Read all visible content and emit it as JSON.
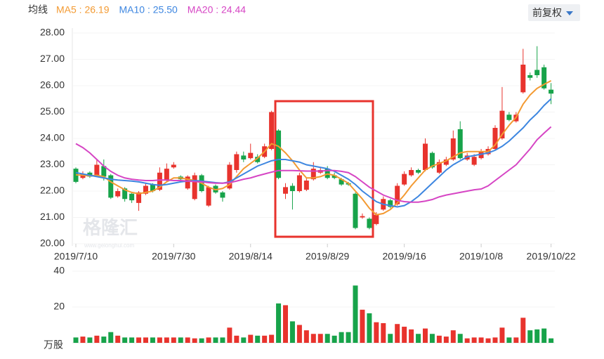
{
  "chart_data": {
    "type": "candlestick",
    "indicator_label": "均线",
    "adjust_button": "前复权",
    "watermark": "格隆汇",
    "watermark_url": "www.gelonghui.com",
    "volume_unit": "万股",
    "up_color": "#e8332d",
    "down_color": "#17a34a",
    "categories": [
      "2019/7/10",
      null,
      null,
      null,
      null,
      null,
      null,
      null,
      null,
      null,
      null,
      null,
      null,
      null,
      "2019/7/30",
      null,
      null,
      null,
      null,
      null,
      null,
      null,
      null,
      null,
      null,
      "2019/8/14",
      null,
      null,
      null,
      null,
      null,
      null,
      null,
      null,
      null,
      null,
      "2019/8/29",
      null,
      null,
      null,
      null,
      null,
      null,
      null,
      null,
      null,
      null,
      "2019/9/16",
      null,
      null,
      null,
      null,
      null,
      null,
      null,
      null,
      null,
      null,
      "2019/10/8",
      null,
      null,
      null,
      null,
      null,
      null,
      null,
      null,
      null,
      "2019/10/22"
    ],
    "open": [
      22.85,
      22.5,
      22.7,
      22.6,
      22.95,
      22.6,
      21.8,
      22.1,
      21.9,
      21.55,
      21.9,
      22.25,
      22.05,
      22.4,
      22.9,
      22.55,
      22.1,
      21.7,
      22.6,
      21.45,
      22.2,
      21.95,
      22.1,
      22.8,
      23.35,
      23.25,
      23.3,
      23.3,
      23.6,
      24.3,
      21.9,
      22.2,
      22.0,
      22.05,
      22.45,
      22.7,
      22.85,
      22.6,
      22.45,
      22.3,
      21.9,
      21.0,
      20.95,
      20.75,
      21.3,
      21.65,
      21.5,
      22.25,
      22.6,
      22.8,
      22.8,
      23.45,
      22.7,
      23.0,
      23.2,
      24.35,
      23.2,
      23.0,
      23.25,
      23.4,
      23.6,
      24.0,
      24.9,
      24.65,
      25.75,
      26.4,
      26.6,
      26.7,
      25.85
    ],
    "high": [
      22.9,
      22.75,
      22.75,
      23.2,
      23.2,
      22.65,
      22.1,
      22.15,
      21.95,
      22.0,
      22.3,
      22.3,
      22.9,
      23.05,
      23.1,
      22.6,
      22.6,
      22.7,
      22.65,
      22.2,
      22.25,
      22.0,
      23.1,
      23.5,
      23.5,
      23.8,
      23.4,
      23.8,
      25.05,
      24.35,
      22.3,
      22.3,
      22.7,
      22.5,
      23.1,
      22.9,
      22.95,
      22.7,
      22.5,
      22.35,
      21.95,
      21.15,
      21.0,
      21.2,
      21.8,
      21.7,
      22.3,
      22.75,
      22.9,
      22.85,
      24.0,
      23.5,
      23.2,
      23.3,
      24.3,
      24.65,
      23.45,
      23.4,
      23.6,
      23.7,
      24.5,
      25.95,
      25.0,
      25.0,
      27.4,
      26.5,
      27.5,
      26.8,
      26.1
    ],
    "low": [
      22.3,
      22.45,
      22.5,
      22.55,
      22.4,
      21.7,
      21.75,
      21.6,
      21.55,
      21.25,
      21.85,
      21.95,
      22.0,
      22.35,
      22.85,
      22.4,
      22.05,
      21.65,
      21.95,
      21.4,
      21.9,
      21.6,
      22.05,
      22.7,
      23.1,
      23.2,
      23.05,
      23.25,
      23.55,
      22.45,
      21.7,
      21.3,
      21.95,
      22.0,
      22.4,
      22.65,
      22.45,
      22.45,
      22.2,
      22.2,
      20.55,
      20.95,
      20.55,
      20.7,
      21.25,
      21.35,
      21.45,
      22.2,
      22.55,
      22.65,
      22.75,
      22.85,
      22.65,
      22.95,
      23.15,
      23.2,
      23.15,
      22.95,
      23.2,
      23.35,
      23.55,
      23.95,
      24.65,
      24.6,
      25.7,
      26.2,
      26.3,
      25.85,
      25.3
    ],
    "close": [
      22.35,
      22.65,
      22.55,
      23.0,
      22.55,
      21.75,
      22.0,
      21.7,
      21.65,
      21.95,
      22.2,
      22.0,
      22.7,
      22.85,
      23.0,
      22.45,
      22.55,
      22.6,
      22.0,
      22.15,
      21.95,
      21.75,
      23.0,
      23.4,
      23.2,
      23.45,
      23.1,
      23.7,
      25.0,
      22.5,
      22.15,
      22.0,
      22.6,
      22.4,
      22.85,
      22.8,
      22.5,
      22.5,
      22.25,
      22.25,
      20.6,
      21.05,
      20.6,
      21.1,
      21.7,
      21.4,
      22.2,
      22.65,
      22.8,
      22.7,
      23.8,
      22.9,
      23.1,
      23.2,
      24.0,
      23.25,
      23.35,
      23.3,
      23.5,
      23.6,
      24.4,
      25.05,
      24.7,
      24.9,
      26.8,
      26.3,
      26.4,
      25.9,
      25.7
    ],
    "volume": [
      3,
      3.5,
      3,
      4,
      3.5,
      6,
      4,
      3,
      3,
      3,
      3,
      3,
      3,
      3,
      3,
      3,
      3,
      2.5,
      2.5,
      3,
      3,
      3,
      8.5,
      4,
      3,
      4.5,
      4,
      4,
      4.5,
      22,
      21,
      12,
      10,
      7,
      5,
      5,
      5,
      4,
      6,
      6,
      32,
      18.5,
      16.5,
      11.5,
      11,
      5,
      10.5,
      9,
      7.5,
      5,
      8,
      5,
      4,
      3.5,
      7,
      5,
      2.5,
      3,
      3,
      2.5,
      3,
      8.5,
      3,
      3,
      14,
      7,
      7.5,
      8,
      2.5
    ],
    "ma": [
      {
        "name": "MA5 : 26.19",
        "color": "#f39a32",
        "values": [
          22.62,
          22.6,
          22.58,
          22.6,
          22.55,
          22.35,
          22.2,
          22.05,
          21.95,
          21.9,
          21.95,
          22.0,
          22.15,
          22.35,
          22.5,
          22.5,
          22.45,
          22.4,
          22.3,
          22.15,
          22.05,
          22.1,
          22.25,
          22.55,
          22.85,
          23.05,
          23.25,
          23.5,
          23.8,
          23.7,
          23.45,
          23.15,
          22.8,
          22.5,
          22.5,
          22.55,
          22.65,
          22.6,
          22.45,
          22.3,
          22.0,
          21.7,
          21.35,
          21.1,
          21.15,
          21.3,
          21.55,
          21.85,
          22.2,
          22.5,
          22.8,
          22.95,
          23.05,
          23.15,
          23.3,
          23.45,
          23.5,
          23.5,
          23.5,
          23.5,
          23.75,
          24.15,
          24.5,
          24.8,
          25.3,
          25.65,
          25.9,
          26.05,
          26.19
        ]
      },
      {
        "name": "MA10 : 25.50",
        "color": "#3d86e0",
        "values": [
          22.7,
          22.65,
          22.6,
          22.55,
          22.5,
          22.45,
          22.42,
          22.4,
          22.38,
          22.35,
          22.3,
          22.25,
          22.22,
          22.25,
          22.3,
          22.35,
          22.38,
          22.4,
          22.38,
          22.35,
          22.32,
          22.3,
          22.35,
          22.5,
          22.65,
          22.8,
          22.95,
          23.05,
          23.15,
          23.2,
          23.2,
          23.15,
          23.1,
          23.0,
          22.95,
          22.9,
          22.85,
          22.75,
          22.6,
          22.45,
          22.25,
          22.0,
          21.8,
          21.6,
          21.5,
          21.45,
          21.4,
          21.45,
          21.6,
          21.8,
          22.05,
          22.3,
          22.55,
          22.8,
          23.0,
          23.15,
          23.3,
          23.35,
          23.4,
          23.45,
          23.55,
          23.7,
          23.9,
          24.15,
          24.4,
          24.7,
          24.95,
          25.25,
          25.5
        ]
      },
      {
        "name": "MA20 : 24.44",
        "color": "#d645c4",
        "values": [
          23.8,
          23.65,
          23.45,
          23.2,
          22.95,
          22.75,
          22.6,
          22.5,
          22.45,
          22.42,
          22.4,
          22.4,
          22.42,
          22.42,
          22.4,
          22.4,
          22.38,
          22.36,
          22.35,
          22.32,
          22.3,
          22.3,
          22.32,
          22.38,
          22.45,
          22.5,
          22.58,
          22.65,
          22.72,
          22.78,
          22.78,
          22.78,
          22.77,
          22.76,
          22.76,
          22.76,
          22.78,
          22.78,
          22.75,
          22.7,
          22.55,
          22.35,
          22.15,
          22.0,
          21.85,
          21.75,
          21.65,
          21.6,
          21.58,
          21.58,
          21.62,
          21.68,
          21.78,
          21.85,
          21.9,
          21.95,
          22.0,
          22.05,
          22.08,
          22.2,
          22.4,
          22.6,
          22.8,
          23.0,
          23.3,
          23.6,
          23.95,
          24.2,
          24.44
        ]
      }
    ],
    "ylim": [
      20,
      28
    ],
    "yticks": [
      {
        "value": 20,
        "label": "20.00"
      },
      {
        "value": 21,
        "label": "21.00"
      },
      {
        "value": 22,
        "label": "22.00"
      },
      {
        "value": 23,
        "label": "23.00"
      },
      {
        "value": 24,
        "label": "24.00"
      },
      {
        "value": 25,
        "label": "25.00"
      },
      {
        "value": 26,
        "label": "26.00"
      },
      {
        "value": 27,
        "label": "27.00"
      },
      {
        "value": 28,
        "label": "28.00"
      }
    ],
    "volume_ylim": [
      0,
      40
    ],
    "volume_yticks": [
      20,
      40
    ]
  }
}
